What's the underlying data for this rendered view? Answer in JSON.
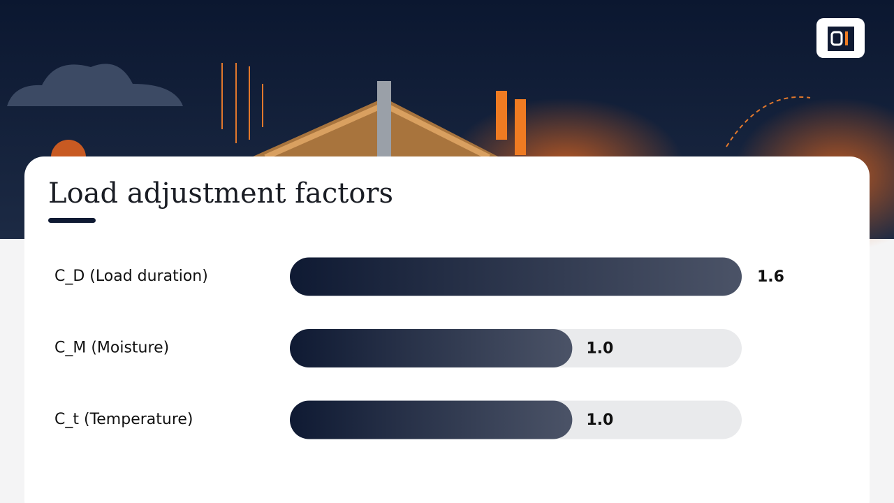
{
  "chart_data": {
    "type": "bar",
    "title": "Load adjustment factors",
    "categories": [
      "C_D (Load duration)",
      "C_M (Moisture)",
      "C_t (Temperature)"
    ],
    "values": [
      1.6,
      1.0,
      1.0
    ],
    "value_labels": [
      "1.6",
      "1.0",
      "1.0"
    ],
    "xlim": [
      0,
      1.6
    ],
    "color": "#0f1a33"
  }
}
